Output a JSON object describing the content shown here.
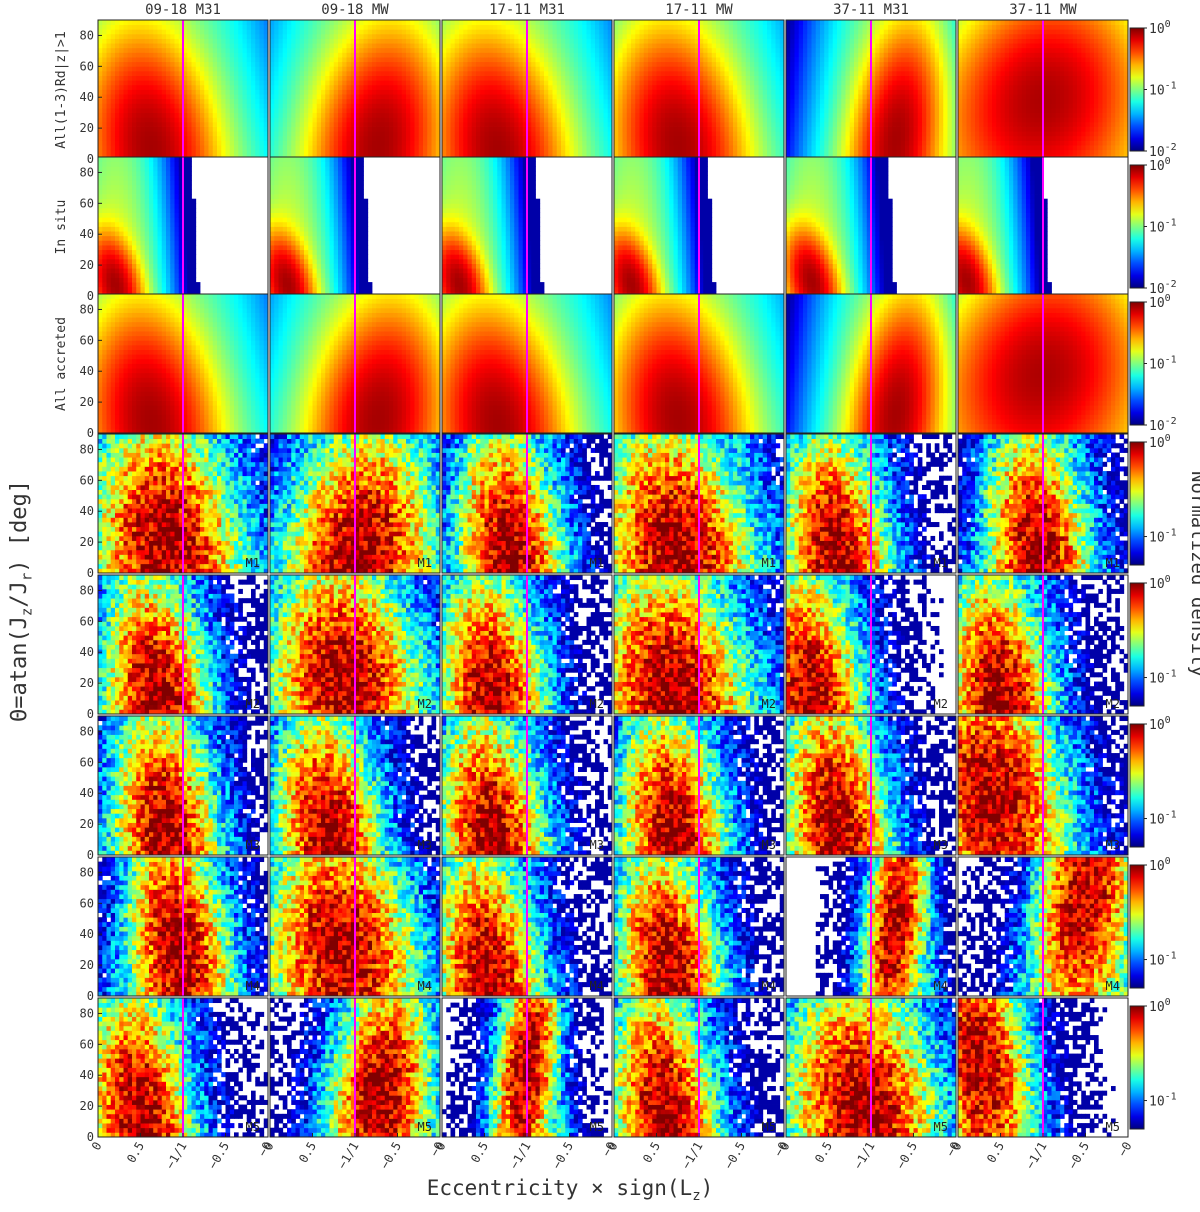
{
  "figure": {
    "y_axis_label": "Θ=atan(J",
    "y_axis_label_sub1": "z",
    "y_axis_label_mid": "/J",
    "y_axis_label_sub2": "r",
    "y_axis_label_end": ")  [deg]",
    "x_axis_label": "Eccentricity × sign(L",
    "x_axis_label_sub": "z",
    "x_axis_label_end": ")",
    "colorbar_label": "Normalized density",
    "column_titles": [
      "09-18 M31",
      "09-18 MW",
      "17-11 M31",
      "17-11 MW",
      "37-11 M31",
      "37-11 MW"
    ],
    "row_labels": [
      "All(1-3)Rd|z|>1",
      "In situ",
      "All accreted",
      "",
      "",
      "",
      "",
      ""
    ],
    "panel_tags": [
      "",
      "",
      "",
      "M1",
      "M2",
      "M3",
      "M4",
      "M5"
    ],
    "x_tick_labels": [
      "0",
      "0.5",
      "−1/1",
      "−0.5",
      "−0"
    ],
    "y_tick_labels": [
      "0",
      "20",
      "40",
      "60",
      "80"
    ],
    "colorbar_ticks": [
      [
        "10^0",
        "10^-1",
        "10^-2"
      ],
      [
        "10^0",
        "10^-1",
        "10^-2"
      ],
      [
        "10^0",
        "10^-1",
        "10^-2"
      ],
      [
        "10^0",
        "10^-1"
      ],
      [
        "10^0",
        "10^-1"
      ],
      [
        "10^0",
        "10^-1"
      ],
      [
        "10^0",
        "10^-1"
      ],
      [
        "10^0",
        "10^-1"
      ]
    ],
    "colors": {
      "guide_line": "#ff00ff",
      "background": "#ffffff",
      "colormap": "jet"
    }
  },
  "chart_data": {
    "type": "heatmap",
    "layout": "8 rows × 6 columns of 2D density histograms",
    "x_quantity": "Eccentricity × sign(Lz)",
    "y_quantity": "Θ = atan(Jz/Jr) [deg]",
    "x_range": [
      0,
      2
    ],
    "y_range": [
      0,
      90
    ],
    "reference_line_x": 1,
    "color_scale": "log",
    "columns": [
      "09-18 M31",
      "09-18 MW",
      "17-11 M31",
      "17-11 MW",
      "37-11 M31",
      "37-11 MW"
    ],
    "rows": [
      "All(1-3)Rd|z|>1",
      "In situ",
      "All accreted",
      "M1",
      "M2",
      "M3",
      "M4",
      "M5"
    ],
    "color_ranges": [
      [
        0.01,
        1
      ],
      [
        0.01,
        1
      ],
      [
        0.01,
        1
      ],
      [
        0.05,
        1
      ],
      [
        0.05,
        1
      ],
      [
        0.05,
        1
      ],
      [
        0.05,
        1
      ],
      [
        0.05,
        1
      ]
    ],
    "panels": [
      [
        {
          "peak_x": 0.62,
          "peak_y": 10,
          "spread": "broad"
        },
        {
          "peak_x": 1.28,
          "peak_y": 12,
          "spread": "broad"
        },
        {
          "peak_x": 0.65,
          "peak_y": 8,
          "spread": "broad"
        },
        {
          "peak_x": 0.75,
          "peak_y": 12,
          "spread": "broad"
        },
        {
          "peak_x": 1.3,
          "peak_y": 15,
          "spread": "medium"
        },
        {
          "peak_x": 1.0,
          "peak_y": 40,
          "spread": "very broad"
        }
      ],
      [
        {
          "peak_x": 0.2,
          "peak_y": 8,
          "spread": "narrow"
        },
        {
          "peak_x": 0.2,
          "peak_y": 8,
          "spread": "narrow"
        },
        {
          "peak_x": 0.2,
          "peak_y": 8,
          "spread": "narrow"
        },
        {
          "peak_x": 0.2,
          "peak_y": 8,
          "spread": "narrow"
        },
        {
          "peak_x": 0.3,
          "peak_y": 10,
          "spread": "narrow"
        },
        {
          "peak_x": 0.1,
          "peak_y": 10,
          "spread": "narrow"
        }
      ],
      [
        {
          "peak_x": 0.62,
          "peak_y": 10,
          "spread": "broad"
        },
        {
          "peak_x": 1.28,
          "peak_y": 12,
          "spread": "broad"
        },
        {
          "peak_x": 0.65,
          "peak_y": 8,
          "spread": "broad"
        },
        {
          "peak_x": 0.75,
          "peak_y": 12,
          "spread": "broad"
        },
        {
          "peak_x": 1.3,
          "peak_y": 15,
          "spread": "medium"
        },
        {
          "peak_x": 1.0,
          "peak_y": 40,
          "spread": "very broad"
        }
      ],
      [
        {
          "peak_x": 0.8,
          "peak_y": 20,
          "spread": "broad"
        },
        {
          "peak_x": 1.05,
          "peak_y": 12,
          "spread": "broad"
        },
        {
          "peak_x": 0.8,
          "peak_y": 12,
          "spread": "medium"
        },
        {
          "peak_x": 0.75,
          "peak_y": 15,
          "spread": "broad"
        },
        {
          "peak_x": 0.6,
          "peak_y": 10,
          "spread": "medium"
        },
        {
          "peak_x": 0.95,
          "peak_y": 12,
          "spread": "medium"
        }
      ],
      [
        {
          "peak_x": 0.7,
          "peak_y": 10,
          "spread": "medium"
        },
        {
          "peak_x": 0.9,
          "peak_y": 20,
          "spread": "broad"
        },
        {
          "peak_x": 0.6,
          "peak_y": 10,
          "spread": "medium"
        },
        {
          "peak_x": 0.7,
          "peak_y": 15,
          "spread": "broad"
        },
        {
          "peak_x": 0.3,
          "peak_y": 10,
          "spread": "medium"
        },
        {
          "peak_x": 0.5,
          "peak_y": 10,
          "spread": "medium"
        }
      ],
      [
        {
          "peak_x": 0.8,
          "peak_y": 15,
          "spread": "medium"
        },
        {
          "peak_x": 0.7,
          "peak_y": 12,
          "spread": "medium"
        },
        {
          "peak_x": 0.6,
          "peak_y": 10,
          "spread": "medium"
        },
        {
          "peak_x": 0.7,
          "peak_y": 12,
          "spread": "medium"
        },
        {
          "peak_x": 0.6,
          "peak_y": 20,
          "spread": "medium"
        },
        {
          "peak_x": 0.4,
          "peak_y": 40,
          "spread": "broad"
        }
      ],
      [
        {
          "peak_x": 0.95,
          "peak_y": 30,
          "spread": "medium"
        },
        {
          "peak_x": 0.85,
          "peak_y": 30,
          "spread": "broad"
        },
        {
          "peak_x": 0.55,
          "peak_y": 12,
          "spread": "medium"
        },
        {
          "peak_x": 0.65,
          "peak_y": 15,
          "spread": "medium"
        },
        {
          "peak_x": 1.3,
          "peak_y": 50,
          "spread": "narrow"
        },
        {
          "peak_x": 1.5,
          "peak_y": 65,
          "spread": "medium"
        }
      ],
      [
        {
          "peak_x": 0.5,
          "peak_y": 15,
          "spread": "medium"
        },
        {
          "peak_x": 1.3,
          "peak_y": 25,
          "spread": "medium"
        },
        {
          "peak_x": 1.0,
          "peak_y": 45,
          "spread": "narrow"
        },
        {
          "peak_x": 0.6,
          "peak_y": 15,
          "spread": "medium"
        },
        {
          "peak_x": 0.9,
          "peak_y": 20,
          "spread": "broad"
        },
        {
          "peak_x": 0.25,
          "peak_y": 50,
          "spread": "medium"
        }
      ]
    ]
  }
}
